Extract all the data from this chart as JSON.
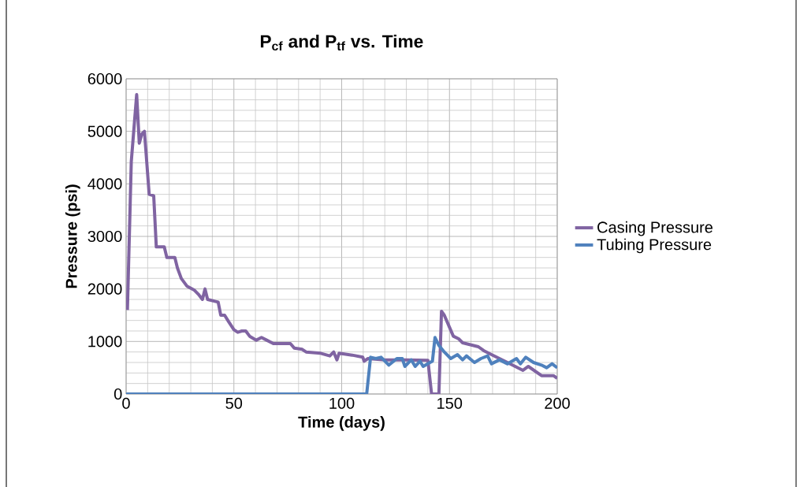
{
  "chart_data": {
    "type": "line",
    "title": "**P$_{cf}$ and P$_{tf}$ vs. Time**",
    "xlabel": "Time (days)",
    "ylabel": "Pressure (psi)",
    "xlim": [
      0,
      200
    ],
    "xticks": [
      0,
      50,
      100,
      150,
      200
    ],
    "ylim": [
      0,
      6000
    ],
    "yticks": [
      0,
      1000,
      2000,
      3000,
      4000,
      5000,
      6000
    ],
    "grid": true,
    "legend": "right",
    "marker": "none",
    "line_style": "solid",
    "series": [
      {
        "name": "Casing Pressure",
        "color": "#8064a2",
        "x": [
          0.6,
          2.4,
          4.9,
          6.1,
          7.3,
          8.5,
          10.7,
          12.8,
          14,
          17.7,
          18.9,
          22.6,
          23.8,
          25.6,
          28.3,
          31.7,
          33.5,
          35.4,
          36.6,
          37.8,
          42.7,
          43.9,
          45.7,
          47.6,
          50,
          51.8,
          53.7,
          55.5,
          57.3,
          60.4,
          62.8,
          65.2,
          68.3,
          76.2,
          78,
          81.7,
          83.5,
          90.3,
          94.5,
          96.3,
          97.8,
          98.8,
          104.9,
          109.8,
          110.4,
          112.2,
          120,
          130,
          140,
          141.7,
          145.1,
          146.3,
          147.6,
          151.8,
          154.3,
          156.1,
          163.4,
          165.9,
          169.5,
          175.6,
          180.5,
          184.1,
          186.6,
          192.7,
          198.2,
          200
        ],
        "values": [
          1600,
          4425,
          5700,
          4775,
          4950,
          5000,
          3800,
          3775,
          2800,
          2800,
          2600,
          2600,
          2400,
          2200,
          2050,
          1975,
          1900,
          1800,
          2000,
          1800,
          1750,
          1500,
          1500,
          1375,
          1225,
          1175,
          1200,
          1200,
          1100,
          1025,
          1075,
          1025,
          960,
          960,
          875,
          850,
          800,
          775,
          725,
          800,
          650,
          775,
          740,
          700,
          625,
          675,
          650,
          650,
          640,
          0,
          0,
          1575,
          1500,
          1100,
          1050,
          975,
          900,
          825,
          750,
          625,
          525,
          450,
          525,
          350,
          350,
          300
        ]
      },
      {
        "name": "Tubing Pressure",
        "color": "#4f81bd",
        "x": [
          0,
          111.6,
          113.4,
          115.8,
          118.3,
          121.9,
          125.6,
          128.1,
          129.3,
          132.3,
          134.1,
          136.3,
          137.8,
          142.1,
          143.3,
          145.1,
          147.6,
          150.6,
          153.7,
          156.1,
          157.9,
          161.6,
          164.6,
          167.7,
          169.5,
          173.2,
          176.9,
          181.1,
          182.9,
          185.4,
          189,
          192.7,
          195.1,
          197.6,
          200
        ],
        "values": [
          0,
          0,
          700,
          675,
          700,
          550,
          675,
          675,
          525,
          650,
          525,
          625,
          525,
          625,
          1075,
          925,
          800,
          675,
          750,
          650,
          725,
          600,
          675,
          725,
          575,
          650,
          575,
          675,
          575,
          700,
          600,
          550,
          500,
          575,
          500
        ]
      }
    ]
  }
}
